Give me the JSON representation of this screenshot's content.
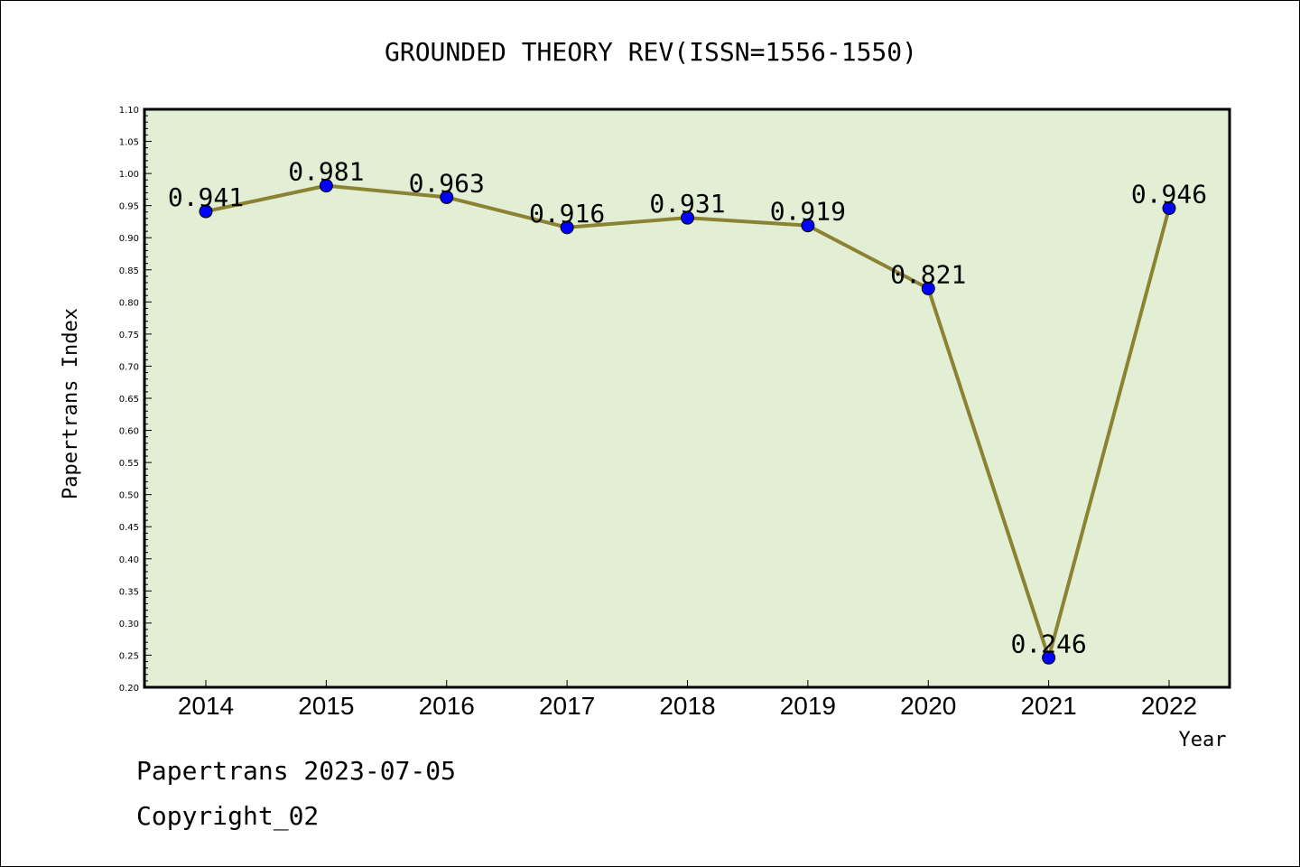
{
  "chart_data": {
    "type": "line",
    "title": "GROUNDED THEORY REV(ISSN=1556-1550)",
    "xlabel": "Year",
    "ylabel": "Papertrans Index",
    "categories": [
      "2014",
      "2015",
      "2016",
      "2017",
      "2018",
      "2019",
      "2020",
      "2021",
      "2022"
    ],
    "series": [
      {
        "values": [
          0.941,
          0.981,
          0.963,
          0.916,
          0.931,
          0.919,
          0.821,
          0.246,
          0.946
        ],
        "labels": [
          "0.941",
          "0.981",
          "0.963",
          "0.916",
          "0.931",
          "0.919",
          "0.821",
          "0.246",
          "0.946"
        ]
      }
    ],
    "ylim": [
      0.2,
      1.1
    ],
    "yticks": [
      "0.20",
      "0.25",
      "0.30",
      "0.35",
      "0.40",
      "0.45",
      "0.50",
      "0.55",
      "0.60",
      "0.65",
      "0.70",
      "0.75",
      "0.80",
      "0.85",
      "0.90",
      "0.95",
      "1.00",
      "1.05",
      "1.10"
    ],
    "grid": false,
    "colors": {
      "plot_background": "#e2efd5",
      "line": "#8b8233",
      "marker": "#0000ff"
    }
  },
  "footer": {
    "line1": "Papertrans 2023-07-05",
    "line2": "Copyright_02"
  }
}
